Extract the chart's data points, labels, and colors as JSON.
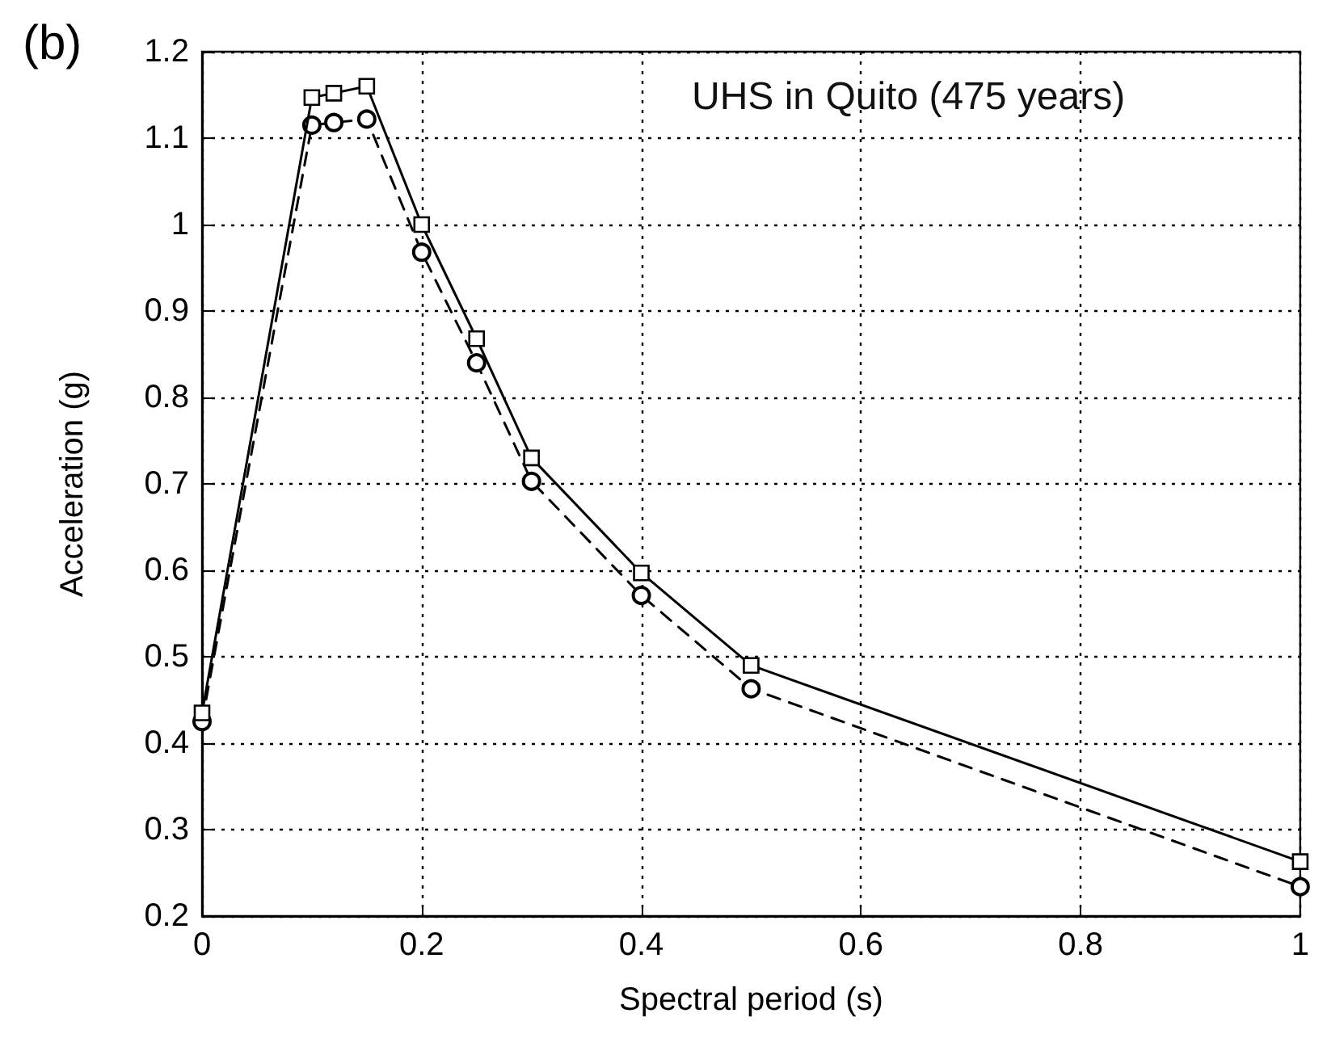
{
  "chart_data": {
    "type": "line",
    "xlabel": "Spectral period (s)",
    "ylabel": "Acceleration (g)",
    "annotations": [
      "(b)",
      "UHS in Quito (475 years)"
    ],
    "x": [
      0,
      0.1,
      0.12,
      0.15,
      0.2,
      0.25,
      0.3,
      0.4,
      0.5,
      1
    ],
    "series": [
      {
        "color": "#000000",
        "marker": "square",
        "line_style": "solid",
        "values": [
          0.435,
          1.147,
          1.152,
          1.16,
          1.0,
          0.868,
          0.73,
          0.597,
          0.49,
          0.263
        ]
      },
      {
        "color": "#000000",
        "marker": "circle",
        "line_style": "dashed",
        "values": [
          0.425,
          1.115,
          1.118,
          1.122,
          0.968,
          0.84,
          0.703,
          0.571,
          0.463,
          0.234
        ]
      }
    ],
    "xlim": [
      0,
      1
    ],
    "xticks": [
      0,
      0.2,
      0.4,
      0.6,
      0.8,
      1
    ],
    "ylim": [
      0.2,
      1.2
    ],
    "yticks": [
      0.2,
      0.3,
      0.4,
      0.5,
      0.6,
      0.7,
      0.8,
      0.9,
      1,
      1.1,
      1.2
    ],
    "grid": true
  }
}
